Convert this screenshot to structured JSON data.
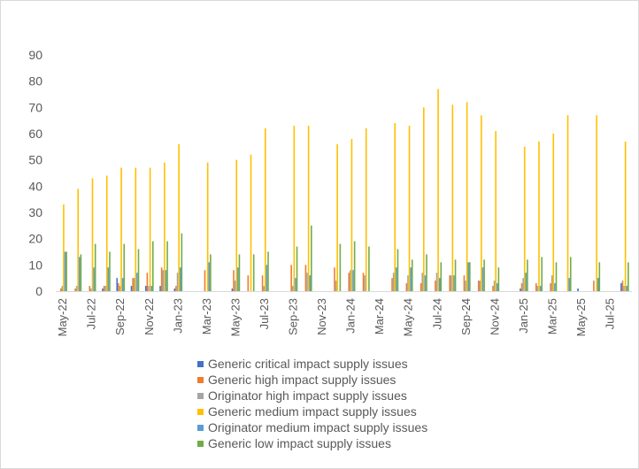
{
  "chart_data": {
    "type": "bar",
    "ylim": [
      0,
      90
    ],
    "y_ticks": [
      "0",
      "10",
      "20",
      "30",
      "40",
      "50",
      "60",
      "70",
      "80",
      "90"
    ],
    "grid": false,
    "legend_position": "bottom",
    "categories": [
      "May-22",
      "Jun-22",
      "Jul-22",
      "Aug-22",
      "Sep-22",
      "Oct-22",
      "Nov-22",
      "Dec-22",
      "Jan-23",
      "Feb-23",
      "Mar-23",
      "Apr-23",
      "May-23",
      "Jun-23",
      "Jul-23",
      "Aug-23",
      "Sep-23",
      "Oct-23",
      "Nov-23",
      "Dec-23",
      "Jan-24",
      "Feb-24",
      "Mar-24",
      "Apr-24",
      "May-24",
      "Jun-24",
      "Jul-24",
      "Aug-24",
      "Sep-24",
      "Oct-24",
      "Nov-24",
      "Dec-24",
      "Jan-25",
      "Feb-25",
      "Mar-25",
      "Apr-25",
      "May-25",
      "Jun-25",
      "Jul-25",
      "Aug-25"
    ],
    "x_tick_labels": [
      "May-22",
      "Jul-22",
      "Sep-22",
      "Nov-22",
      "Jan-23",
      "Mar-23",
      "May-23",
      "Jul-23",
      "Sep-23",
      "Nov-23",
      "Jan-24",
      "Mar-24",
      "May-24",
      "Jul-24",
      "Sep-24",
      "Nov-24",
      "Jan-25",
      "Mar-25",
      "May-25",
      "Jul-25"
    ],
    "series": [
      {
        "name": "Generic critical impact supply issues",
        "color": "#4472c4",
        "values": [
          0,
          0,
          0,
          1,
          5,
          2,
          2,
          2,
          1,
          0,
          0,
          0,
          1,
          0,
          0,
          0,
          0,
          0,
          0,
          0,
          0,
          0,
          0,
          0,
          0,
          0,
          0,
          0,
          0,
          0,
          0,
          0,
          1,
          0,
          0,
          0,
          1,
          0,
          0,
          3
        ]
      },
      {
        "name": "Generic high impact supply issues",
        "color": "#ed7d31",
        "values": [
          1,
          1,
          2,
          2,
          3,
          5,
          7,
          9,
          2,
          0,
          8,
          0,
          8,
          6,
          6,
          0,
          10,
          10,
          0,
          9,
          7,
          7,
          0,
          5,
          3,
          3,
          4,
          6,
          6,
          4,
          2,
          0,
          3,
          3,
          3,
          0,
          0,
          4,
          0,
          4
        ]
      },
      {
        "name": "Originator high impact supply issues",
        "color": "#a5a5a5",
        "values": [
          2,
          2,
          1,
          2,
          2,
          5,
          2,
          8,
          7,
          0,
          0,
          0,
          4,
          0,
          2,
          0,
          2,
          7,
          0,
          4,
          8,
          6,
          0,
          7,
          6,
          7,
          7,
          6,
          4,
          4,
          4,
          0,
          5,
          2,
          6,
          0,
          0,
          0,
          0,
          2
        ]
      },
      {
        "name": "Generic medium impact supply issues",
        "color": "#ffc000",
        "values": [
          33,
          39,
          43,
          44,
          47,
          47,
          47,
          49,
          56,
          0,
          49,
          0,
          50,
          52,
          62,
          0,
          63,
          63,
          0,
          56,
          58,
          62,
          0,
          64,
          63,
          70,
          77,
          71,
          72,
          67,
          61,
          0,
          55,
          57,
          60,
          67,
          0,
          67,
          0,
          57
        ]
      },
      {
        "name": "Originator medium impact supply issues",
        "color": "#5b9bd5",
        "values": [
          15,
          13,
          9,
          9,
          5,
          7,
          2,
          8,
          9,
          0,
          11,
          0,
          9,
          0,
          10,
          0,
          5,
          6,
          0,
          0,
          8,
          0,
          0,
          9,
          9,
          6,
          5,
          6,
          11,
          9,
          3,
          0,
          7,
          2,
          3,
          5,
          0,
          5,
          0,
          2
        ]
      },
      {
        "name": "Generic low impact supply issues",
        "color": "#70ad47",
        "values": [
          15,
          14,
          18,
          15,
          18,
          16,
          19,
          19,
          22,
          0,
          14,
          0,
          14,
          14,
          15,
          0,
          17,
          25,
          0,
          18,
          19,
          17,
          0,
          16,
          12,
          14,
          11,
          12,
          11,
          12,
          9,
          0,
          12,
          13,
          11,
          13,
          0,
          11,
          0,
          11
        ]
      }
    ]
  }
}
